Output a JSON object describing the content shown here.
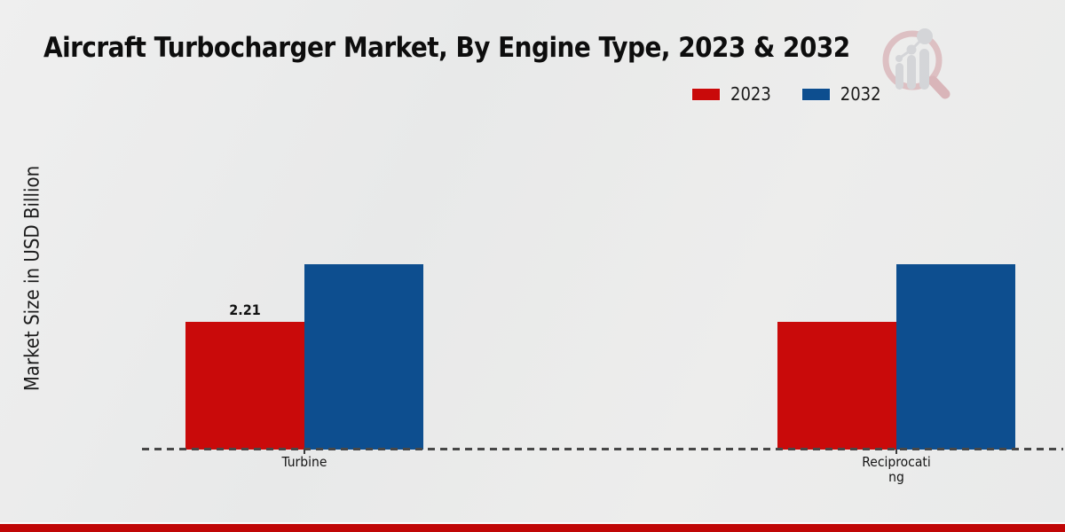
{
  "page": {
    "title": "Aircraft Turbocharger Market, By Engine Type, 2023 & 2032",
    "y_axis_label": "Market Size in USD Billion"
  },
  "legend": {
    "position": "top-right",
    "items": [
      {
        "label": "2023",
        "color": "#c90a0a"
      },
      {
        "label": "2032",
        "color": "#0d4e8f"
      }
    ]
  },
  "chart_data": {
    "type": "bar",
    "title": "Aircraft Turbocharger Market, By Engine Type, 2023 & 2032",
    "xlabel": "",
    "ylabel": "Market Size in USD Billion",
    "gridlines": false,
    "baseline_style": "dashed",
    "legend_position": "top-right",
    "categories": [
      {
        "name": "Turbine",
        "lines": [
          "Turbine"
        ]
      },
      {
        "name": "Reciprocating",
        "lines": [
          "Reciprocati",
          "ng"
        ]
      }
    ],
    "series": [
      {
        "name": "2023",
        "color": "#c90a0a",
        "values": [
          2.21,
          2.21
        ],
        "labels": [
          "2.21",
          ""
        ]
      },
      {
        "name": "2032",
        "color": "#0d4e8f",
        "values": [
          3.2,
          3.2
        ],
        "labels": [
          "",
          ""
        ]
      }
    ]
  },
  "colors": {
    "series_2023": "#c90a0a",
    "series_2032": "#0d4e8f",
    "footer_bar": "#c00606",
    "baseline_dash": "#474747",
    "background": "#eaebeb",
    "logo_ring": "#cf949b",
    "logo_handle": "#c77f88",
    "logo_bars": "#bcbfc6"
  }
}
